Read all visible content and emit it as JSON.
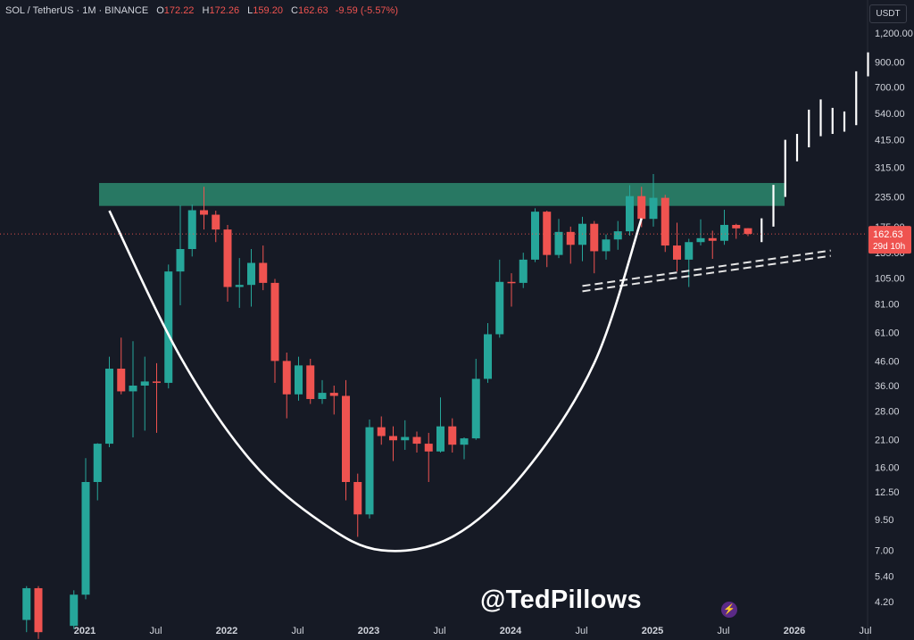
{
  "header": {
    "symbol": "SOL / TetherUS · 1M · BINANCE",
    "open_label": "O",
    "open": "172.22",
    "high_label": "H",
    "high": "172.26",
    "low_label": "L",
    "low": "159.20",
    "close_label": "C",
    "close": "162.63",
    "change": "-9.59 (-5.57%)"
  },
  "currency_button": "USDT",
  "price_label": {
    "price": "162.63",
    "countdown": "29d 10h"
  },
  "watermark": "@TedPillows",
  "colors": {
    "background": "#161a25",
    "up": "#26a69a",
    "down": "#ef5350",
    "projection": "#ffffff",
    "resistance": "#2b8a6e",
    "text": "#d1d4dc"
  },
  "chart_data": {
    "type": "candlestick",
    "scale": "log",
    "ylim": [
      3.5,
      1400
    ],
    "y_ticks": [
      "1,200.00",
      "900.00",
      "700.00",
      "540.00",
      "415.00",
      "315.00",
      "235.00",
      "175.00",
      "135.00",
      "105.00",
      "81.00",
      "61.00",
      "46.00",
      "36.00",
      "28.00",
      "21.00",
      "16.00",
      "12.50",
      "9.50",
      "7.00",
      "5.40",
      "4.20"
    ],
    "x_ticks": [
      "2021",
      "Jul",
      "2022",
      "Jul",
      "2023",
      "Jul",
      "2024",
      "Jul",
      "2025",
      "Jul",
      "2026",
      "Jul"
    ],
    "current_price": 162.63,
    "candles": [
      {
        "date": "2020-08",
        "o": 3.5,
        "h": 4.9,
        "l": 3.1,
        "c": 4.8
      },
      {
        "date": "2020-09",
        "o": 4.8,
        "h": 4.9,
        "l": 2.9,
        "c": 3.1
      },
      {
        "date": "2020-12",
        "o": 3.3,
        "h": 4.7,
        "l": 3.2,
        "c": 4.5
      },
      {
        "date": "2021-01",
        "o": 4.5,
        "h": 17.5,
        "l": 4.3,
        "c": 13.8
      },
      {
        "date": "2021-02",
        "o": 13.8,
        "h": 20.3,
        "l": 11.5,
        "c": 20.2
      },
      {
        "date": "2021-03",
        "o": 20.2,
        "h": 48.0,
        "l": 19.5,
        "c": 42.6
      },
      {
        "date": "2021-04",
        "o": 42.6,
        "h": 58.0,
        "l": 33.0,
        "c": 34.0
      },
      {
        "date": "2021-05",
        "o": 34.0,
        "h": 56.0,
        "l": 21.5,
        "c": 36.0
      },
      {
        "date": "2021-06",
        "o": 36.0,
        "h": 48.0,
        "l": 23.0,
        "c": 37.5
      },
      {
        "date": "2021-07",
        "o": 37.5,
        "h": 45.0,
        "l": 22.5,
        "c": 37.0
      },
      {
        "date": "2021-08",
        "o": 37.0,
        "h": 120.0,
        "l": 35.0,
        "c": 112.0
      },
      {
        "date": "2021-09",
        "o": 112.0,
        "h": 216.0,
        "l": 80.0,
        "c": 140.0
      },
      {
        "date": "2021-10",
        "o": 140.0,
        "h": 218.0,
        "l": 130.0,
        "c": 206.0
      },
      {
        "date": "2021-11",
        "o": 206.0,
        "h": 260.0,
        "l": 170.0,
        "c": 197.0
      },
      {
        "date": "2021-12",
        "o": 197.0,
        "h": 205.0,
        "l": 150.0,
        "c": 170.0
      },
      {
        "date": "2022-01",
        "o": 170.0,
        "h": 178.0,
        "l": 83.0,
        "c": 96.0
      },
      {
        "date": "2022-02",
        "o": 96.0,
        "h": 128.0,
        "l": 78.0,
        "c": 98.0
      },
      {
        "date": "2022-03",
        "o": 98.0,
        "h": 140.0,
        "l": 79.0,
        "c": 122.0
      },
      {
        "date": "2022-04",
        "o": 122.0,
        "h": 145.0,
        "l": 93.0,
        "c": 100.0
      },
      {
        "date": "2022-05",
        "o": 100.0,
        "h": 104.0,
        "l": 37.0,
        "c": 46.0
      },
      {
        "date": "2022-06",
        "o": 46.0,
        "h": 50.0,
        "l": 26.0,
        "c": 33.0
      },
      {
        "date": "2022-07",
        "o": 33.0,
        "h": 48.0,
        "l": 31.0,
        "c": 44.0
      },
      {
        "date": "2022-08",
        "o": 44.0,
        "h": 47.0,
        "l": 30.0,
        "c": 31.5
      },
      {
        "date": "2022-09",
        "o": 31.5,
        "h": 38.0,
        "l": 30.0,
        "c": 33.5
      },
      {
        "date": "2022-10",
        "o": 33.5,
        "h": 36.0,
        "l": 27.0,
        "c": 32.5
      },
      {
        "date": "2022-11",
        "o": 32.5,
        "h": 38.0,
        "l": 11.5,
        "c": 13.8
      },
      {
        "date": "2022-12",
        "o": 13.8,
        "h": 15.0,
        "l": 8.0,
        "c": 10.0
      },
      {
        "date": "2023-01",
        "o": 10.0,
        "h": 25.7,
        "l": 9.6,
        "c": 23.8
      },
      {
        "date": "2023-02",
        "o": 23.8,
        "h": 26.5,
        "l": 20.0,
        "c": 21.8
      },
      {
        "date": "2023-03",
        "o": 21.8,
        "h": 24.0,
        "l": 17.0,
        "c": 20.9
      },
      {
        "date": "2023-04",
        "o": 20.9,
        "h": 25.5,
        "l": 19.0,
        "c": 21.6
      },
      {
        "date": "2023-05",
        "o": 21.6,
        "h": 22.8,
        "l": 18.5,
        "c": 20.2
      },
      {
        "date": "2023-06",
        "o": 20.2,
        "h": 22.5,
        "l": 13.8,
        "c": 18.7
      },
      {
        "date": "2023-07",
        "o": 18.7,
        "h": 32.0,
        "l": 18.5,
        "c": 24.0
      },
      {
        "date": "2023-08",
        "o": 24.0,
        "h": 26.0,
        "l": 18.5,
        "c": 20.0
      },
      {
        "date": "2023-09",
        "o": 20.0,
        "h": 21.5,
        "l": 17.3,
        "c": 21.3
      },
      {
        "date": "2023-10",
        "o": 21.3,
        "h": 47.0,
        "l": 21.0,
        "c": 38.5
      },
      {
        "date": "2023-11",
        "o": 38.5,
        "h": 67.0,
        "l": 37.0,
        "c": 60.0
      },
      {
        "date": "2023-12",
        "o": 60.0,
        "h": 126.0,
        "l": 58.0,
        "c": 101.0
      },
      {
        "date": "2024-01",
        "o": 101.0,
        "h": 110.0,
        "l": 79.0,
        "c": 100.0
      },
      {
        "date": "2024-02",
        "o": 100.0,
        "h": 135.0,
        "l": 95.0,
        "c": 126.0
      },
      {
        "date": "2024-03",
        "o": 126.0,
        "h": 210.0,
        "l": 123.0,
        "c": 203.0
      },
      {
        "date": "2024-04",
        "o": 203.0,
        "h": 205.0,
        "l": 117.0,
        "c": 132.0
      },
      {
        "date": "2024-05",
        "o": 132.0,
        "h": 189.0,
        "l": 128.0,
        "c": 166.0
      },
      {
        "date": "2024-06",
        "o": 166.0,
        "h": 175.0,
        "l": 121.0,
        "c": 146.0
      },
      {
        "date": "2024-07",
        "o": 146.0,
        "h": 193.0,
        "l": 124.0,
        "c": 180.0
      },
      {
        "date": "2024-08",
        "o": 180.0,
        "h": 185.0,
        "l": 110.0,
        "c": 137.0
      },
      {
        "date": "2024-09",
        "o": 137.0,
        "h": 162.0,
        "l": 126.0,
        "c": 154.0
      },
      {
        "date": "2024-10",
        "o": 154.0,
        "h": 185.0,
        "l": 139.0,
        "c": 167.0
      },
      {
        "date": "2024-11",
        "o": 167.0,
        "h": 264.0,
        "l": 160.0,
        "c": 237.0
      },
      {
        "date": "2024-12",
        "o": 237.0,
        "h": 260.0,
        "l": 174.0,
        "c": 189.0
      },
      {
        "date": "2025-01",
        "o": 189.0,
        "h": 295.0,
        "l": 175.0,
        "c": 233.0
      },
      {
        "date": "2025-02",
        "o": 233.0,
        "h": 240.0,
        "l": 136.0,
        "c": 145.0
      },
      {
        "date": "2025-03",
        "o": 145.0,
        "h": 182.0,
        "l": 112.0,
        "c": 126.0
      },
      {
        "date": "2025-04",
        "o": 126.0,
        "h": 155.0,
        "l": 96.0,
        "c": 150.0
      },
      {
        "date": "2025-05",
        "o": 150.0,
        "h": 188.0,
        "l": 145.0,
        "c": 156.0
      },
      {
        "date": "2025-06",
        "o": 156.0,
        "h": 168.0,
        "l": 127.0,
        "c": 152.0
      },
      {
        "date": "2025-07",
        "o": 152.0,
        "h": 207.0,
        "l": 146.0,
        "c": 178.0
      },
      {
        "date": "2025-08",
        "o": 178.0,
        "h": 180.0,
        "l": 155.0,
        "c": 172.0
      },
      {
        "date": "2025-09",
        "o": 172.22,
        "h": 172.26,
        "l": 159.2,
        "c": 162.63
      }
    ],
    "projection": [
      {
        "date": "2025-10",
        "o": 150.0,
        "h": 190.0
      },
      {
        "date": "2025-11",
        "o": 175.0,
        "h": 265.0
      },
      {
        "date": "2025-12",
        "o": 235.0,
        "h": 415.0
      },
      {
        "date": "2026-01",
        "o": 335.0,
        "h": 440.0
      },
      {
        "date": "2026-02",
        "o": 385.0,
        "h": 560.0
      },
      {
        "date": "2026-03",
        "o": 430.0,
        "h": 620.0
      },
      {
        "date": "2026-04",
        "o": 440.0,
        "h": 570.0
      },
      {
        "date": "2026-05",
        "o": 450.0,
        "h": 550.0
      },
      {
        "date": "2026-06",
        "o": 480.0,
        "h": 820.0
      },
      {
        "date": "2026-07",
        "o": 780.0,
        "h": 990.0
      }
    ],
    "resistance_zone": [
      215,
      270
    ],
    "trendline": [
      {
        "date": "2024-07",
        "value": 97
      },
      {
        "date": "2026-04",
        "value": 138
      }
    ],
    "cup_curve": [
      {
        "date": "2021-03",
        "value": 205
      },
      {
        "date": "2021-09",
        "value": 48
      },
      {
        "date": "2022-03",
        "value": 17
      },
      {
        "date": "2022-09",
        "value": 9.2
      },
      {
        "date": "2023-02",
        "value": 7.0
      },
      {
        "date": "2023-08",
        "value": 8.0
      },
      {
        "date": "2024-02",
        "value": 15
      },
      {
        "date": "2024-08",
        "value": 45
      },
      {
        "date": "2024-12",
        "value": 190
      }
    ]
  }
}
